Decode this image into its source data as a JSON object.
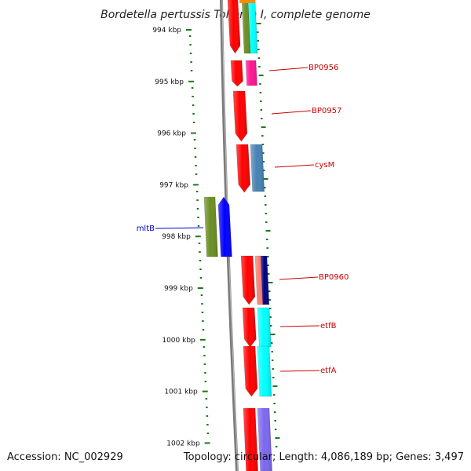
{
  "title": "Bordetella pertussis Tohama I, complete genome",
  "footer": {
    "accession": "Accession: NC_002929",
    "topology": "Topology: circular; Length: 4,086,189 bp; Genes: 3,497"
  },
  "colors": {
    "backbone": "#7a7a7a",
    "tick": "#1a7a1a",
    "label_forward": "#cc0000",
    "label_reverse": "#0000cc"
  },
  "ticks": [
    {
      "label": "994 kbp",
      "kbp": 994
    },
    {
      "label": "995 kbp",
      "kbp": 995
    },
    {
      "label": "996 kbp",
      "kbp": 996
    },
    {
      "label": "997 kbp",
      "kbp": 997
    },
    {
      "label": "998 kbp",
      "kbp": 998
    },
    {
      "label": "999 kbp",
      "kbp": 999
    },
    {
      "label": "1000 kbp",
      "kbp": 1000
    },
    {
      "label": "1001 kbp",
      "kbp": 1001
    },
    {
      "label": "1002 kbp",
      "kbp": 1002
    }
  ],
  "genes": [
    {
      "name": "BP0956",
      "color": "#ff1493",
      "strand": "forward"
    },
    {
      "name": "BP0957",
      "color": "#ff0000",
      "strand": "forward"
    },
    {
      "name": "cysM",
      "color": "#4682b4",
      "strand": "forward"
    },
    {
      "name": "mltB",
      "color": "#6b8e23",
      "strand": "reverse"
    },
    {
      "name": "BP0960",
      "color": "#000080",
      "strand": "forward"
    },
    {
      "name": "etfB",
      "color": "#00ffff",
      "strand": "forward"
    },
    {
      "name": "etfA",
      "color": "#00ffff",
      "strand": "forward"
    }
  ]
}
